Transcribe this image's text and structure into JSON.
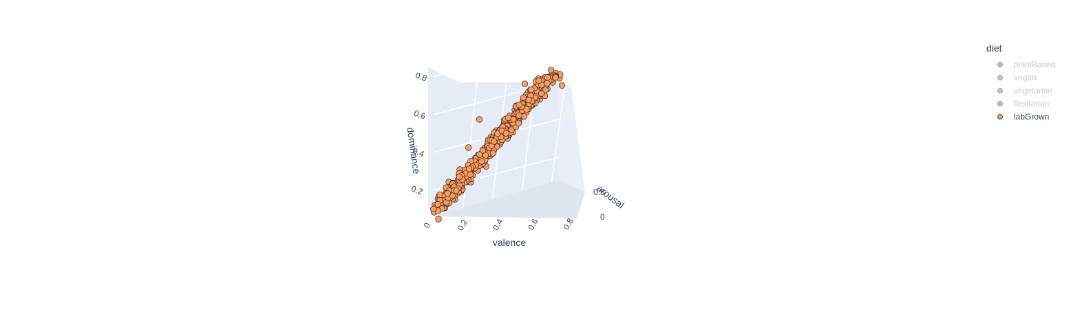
{
  "chart_data": {
    "type": "scatter",
    "subtype": "3d",
    "axes": {
      "x": {
        "title": "valence",
        "range": [
          0,
          0.85
        ],
        "ticks": [
          "0",
          "0.2",
          "0.4",
          "0.6",
          "0.8"
        ]
      },
      "y": {
        "title": "arousal",
        "range": [
          0,
          0.6
        ],
        "ticks": [
          "0",
          "0.5"
        ]
      },
      "z": {
        "title": "dominance",
        "range": [
          0.05,
          0.85
        ],
        "ticks": [
          "0.2",
          "0.4",
          "0.6",
          "0.8"
        ]
      }
    },
    "legend": {
      "title": "diet",
      "placement": "top-right",
      "entries": [
        {
          "name": "plantBased",
          "color": "#6c7a89",
          "visible": false
        },
        {
          "name": "vegan",
          "color": "#7f8c8d",
          "visible": false
        },
        {
          "name": "vegetarian",
          "color": "#5aa382",
          "visible": false
        },
        {
          "name": "flexitarian",
          "color": "#7a8088",
          "visible": false
        },
        {
          "name": "labGrown",
          "color": "#f4a261",
          "visible": true
        }
      ]
    },
    "series": [
      {
        "name": "labGrown",
        "color": "#fc9b5c",
        "trend": {
          "valence_at_dominance_0_1": 0.05,
          "valence_at_dominance_0_75": 0.75
        },
        "points": [
          {
            "valence": 0.02,
            "arousal": 0.1,
            "dominance": 0.04
          },
          {
            "valence": 0.7,
            "arousal": 0.4,
            "dominance": 0.78
          },
          {
            "valence": 0.77,
            "arousal": 0.3,
            "dominance": 0.7
          },
          {
            "valence": 0.55,
            "arousal": 0.3,
            "dominance": 0.72
          },
          {
            "valence": 0.28,
            "arousal": 0.2,
            "dominance": 0.55
          },
          {
            "valence": 0.2,
            "arousal": 0.3,
            "dominance": 0.4
          },
          {
            "valence": 0.74,
            "arousal": 0.5,
            "dominance": 0.73
          }
        ]
      }
    ],
    "grid": true,
    "background": "#e5ecf6"
  }
}
